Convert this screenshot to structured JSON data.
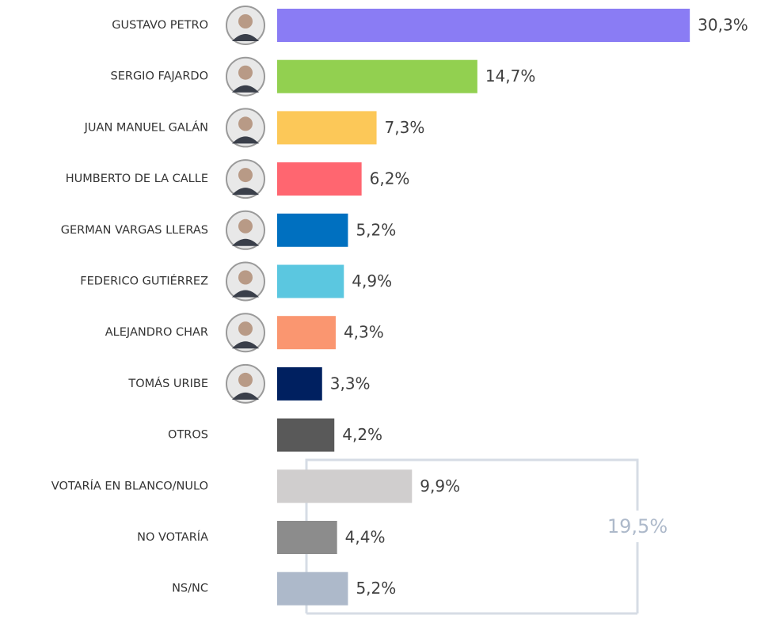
{
  "chart_data": {
    "type": "bar",
    "orientation": "horizontal",
    "categories": [
      "GUSTAVO PETRO",
      "SERGIO FAJARDO",
      "JUAN MANUEL GALÁN",
      "HUMBERTO DE LA CALLE",
      "GERMAN VARGAS LLERAS",
      "FEDERICO GUTIÉRREZ",
      "ALEJANDRO CHAR",
      "TOMÁS URIBE",
      "OTROS",
      "VOTARÍA EN BLANCO/NULO",
      "NO VOTARÍA",
      "NS/NC"
    ],
    "values": [
      30.3,
      14.7,
      7.3,
      6.2,
      5.2,
      4.9,
      4.3,
      3.3,
      4.2,
      9.9,
      4.4,
      5.2
    ],
    "value_labels": [
      "30,3%",
      "14,7%",
      "7,3%",
      "6,2%",
      "5,2%",
      "4,9%",
      "4,3%",
      "3,3%",
      "4,2%",
      "9,9%",
      "4,4%",
      "5,2%"
    ],
    "colors": [
      "#8a7cf4",
      "#92d050",
      "#fcc858",
      "#ff6670",
      "#0070c0",
      "#5bc7e0",
      "#fa9670",
      "#002060",
      "#595959",
      "#d0cece",
      "#8c8c8c",
      "#adb9ca"
    ],
    "annotation": "19,5%"
  }
}
